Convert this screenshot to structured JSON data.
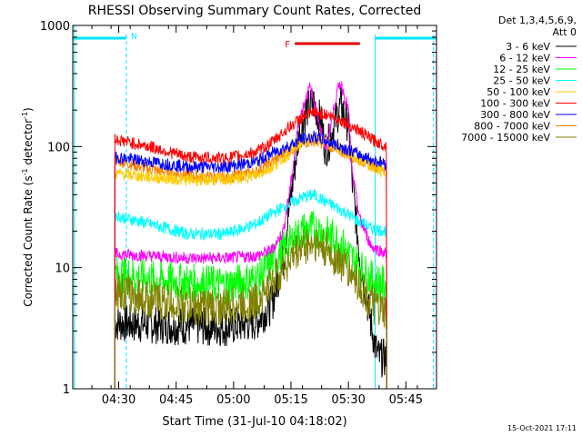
{
  "chart_data": {
    "type": "line",
    "title": "RHESSI Observing Summary Count Rates, Corrected",
    "xlabel": "Start Time (31-Jul-10 04:18:02)",
    "ylabel_main": "Corrected Count Rate (s",
    "ylabel_sup1": "-1",
    "ylabel_mid": " detector",
    "ylabel_sup2": "-1",
    "ylabel_end": ")",
    "x_range_min": [
      0,
      95
    ],
    "y_scale": "log",
    "ylim": [
      1,
      1000
    ],
    "x_ticks": [
      {
        "min": 12,
        "label": "04:30"
      },
      {
        "min": 27,
        "label": "04:45"
      },
      {
        "min": 42,
        "label": "05:00"
      },
      {
        "min": 57,
        "label": "05:15"
      },
      {
        "min": 72,
        "label": "05:30"
      },
      {
        "min": 87,
        "label": "05:45"
      }
    ],
    "y_ticks": [
      {
        "value": 1,
        "label": "1"
      },
      {
        "value": 10,
        "label": "10"
      },
      {
        "value": 100,
        "label": "100"
      },
      {
        "value": 1000,
        "label": "1000"
      }
    ],
    "legend_header": [
      "Det 1,3,4,5,6,9,",
      "Att 0"
    ],
    "legend_placement": "right",
    "flags": [
      {
        "label": "N",
        "color": "#00e5ff"
      },
      {
        "label": "F",
        "color": "#e00000"
      }
    ],
    "night_segments_min": [
      [
        0,
        14
      ],
      [
        79,
        95
      ]
    ],
    "night_bounds_min": [
      14,
      79
    ],
    "flare_segment_min": [
      58,
      75
    ],
    "footer_date": "15-Oct-2021 17:11",
    "data_window_min": [
      11,
      82
    ],
    "series": [
      {
        "name": "3 - 6 keV",
        "color": "#000000",
        "points": [
          [
            11,
            3.5
          ],
          [
            20,
            3.4
          ],
          [
            30,
            3.3
          ],
          [
            40,
            3.2
          ],
          [
            48,
            3.6
          ],
          [
            52,
            5
          ],
          [
            55,
            12
          ],
          [
            57,
            40
          ],
          [
            59,
            120
          ],
          [
            61,
            200
          ],
          [
            63,
            230
          ],
          [
            65,
            150
          ],
          [
            66,
            95
          ],
          [
            67,
            110
          ],
          [
            69,
            180
          ],
          [
            70,
            220
          ],
          [
            72,
            150
          ],
          [
            73,
            50
          ],
          [
            75,
            12
          ],
          [
            77,
            5
          ],
          [
            79,
            2.2
          ],
          [
            80,
            1.8
          ],
          [
            82,
            1.8
          ]
        ]
      },
      {
        "name": "6 - 12 keV",
        "color": "#ff00ff",
        "points": [
          [
            11,
            13
          ],
          [
            20,
            12.5
          ],
          [
            30,
            12
          ],
          [
            40,
            12
          ],
          [
            48,
            12.5
          ],
          [
            52,
            14
          ],
          [
            55,
            20
          ],
          [
            57,
            50
          ],
          [
            59,
            160
          ],
          [
            61,
            260
          ],
          [
            62,
            310
          ],
          [
            64,
            180
          ],
          [
            66,
            95
          ],
          [
            67,
            130
          ],
          [
            69,
            280
          ],
          [
            70,
            340
          ],
          [
            72,
            200
          ],
          [
            73,
            60
          ],
          [
            75,
            25
          ],
          [
            78,
            15
          ],
          [
            82,
            13
          ]
        ]
      },
      {
        "name": "12 - 25 keV",
        "color": "#00ff00",
        "points": [
          [
            11,
            9
          ],
          [
            20,
            8
          ],
          [
            30,
            7.5
          ],
          [
            40,
            7.2
          ],
          [
            48,
            8
          ],
          [
            52,
            11
          ],
          [
            56,
            15
          ],
          [
            60,
            20
          ],
          [
            63,
            21
          ],
          [
            66,
            19
          ],
          [
            69,
            17
          ],
          [
            72,
            13
          ],
          [
            75,
            10
          ],
          [
            78,
            8
          ],
          [
            82,
            7
          ]
        ]
      },
      {
        "name": "25 - 50 keV",
        "color": "#00ffff",
        "points": [
          [
            11,
            27
          ],
          [
            20,
            23
          ],
          [
            30,
            19
          ],
          [
            40,
            19
          ],
          [
            48,
            23
          ],
          [
            52,
            28
          ],
          [
            56,
            33
          ],
          [
            60,
            38
          ],
          [
            63,
            40
          ],
          [
            66,
            35
          ],
          [
            70,
            30
          ],
          [
            74,
            25
          ],
          [
            78,
            21
          ],
          [
            82,
            20
          ]
        ]
      },
      {
        "name": "50 - 100 keV",
        "color": "#ffcc00",
        "points": [
          [
            11,
            60
          ],
          [
            20,
            56
          ],
          [
            30,
            53
          ],
          [
            40,
            53
          ],
          [
            48,
            58
          ],
          [
            52,
            68
          ],
          [
            56,
            85
          ],
          [
            60,
            108
          ],
          [
            63,
            118
          ],
          [
            66,
            112
          ],
          [
            70,
            95
          ],
          [
            74,
            80
          ],
          [
            78,
            68
          ],
          [
            82,
            60
          ]
        ]
      },
      {
        "name": "100 - 300 keV",
        "color": "#ff0000",
        "points": [
          [
            11,
            115
          ],
          [
            20,
            100
          ],
          [
            30,
            82
          ],
          [
            40,
            80
          ],
          [
            48,
            90
          ],
          [
            52,
            108
          ],
          [
            56,
            140
          ],
          [
            60,
            175
          ],
          [
            63,
            190
          ],
          [
            66,
            185
          ],
          [
            70,
            165
          ],
          [
            74,
            140
          ],
          [
            78,
            115
          ],
          [
            82,
            100
          ]
        ]
      },
      {
        "name": "300 - 800 keV",
        "color": "#0000ff",
        "points": [
          [
            11,
            82
          ],
          [
            20,
            75
          ],
          [
            30,
            68
          ],
          [
            40,
            68
          ],
          [
            48,
            75
          ],
          [
            52,
            88
          ],
          [
            56,
            100
          ],
          [
            60,
            115
          ],
          [
            63,
            120
          ],
          [
            66,
            112
          ],
          [
            70,
            100
          ],
          [
            74,
            88
          ],
          [
            78,
            78
          ],
          [
            82,
            72
          ]
        ]
      },
      {
        "name": "800 - 7000 keV",
        "color": "#ff8000",
        "points": [
          [
            11,
            78
          ],
          [
            20,
            65
          ],
          [
            30,
            58
          ],
          [
            40,
            55
          ],
          [
            48,
            62
          ],
          [
            52,
            75
          ],
          [
            56,
            90
          ],
          [
            60,
            108
          ],
          [
            63,
            112
          ],
          [
            66,
            105
          ],
          [
            70,
            92
          ],
          [
            74,
            80
          ],
          [
            78,
            70
          ],
          [
            82,
            65
          ]
        ]
      },
      {
        "name": "7000 - 15000 keV",
        "color": "#808000",
        "points": [
          [
            11,
            6.5
          ],
          [
            20,
            5.5
          ],
          [
            30,
            4.8
          ],
          [
            40,
            4.7
          ],
          [
            48,
            5.2
          ],
          [
            52,
            7.5
          ],
          [
            56,
            11
          ],
          [
            60,
            15
          ],
          [
            63,
            16
          ],
          [
            66,
            14
          ],
          [
            70,
            11
          ],
          [
            74,
            8
          ],
          [
            78,
            5
          ],
          [
            82,
            4
          ]
        ]
      }
    ]
  }
}
